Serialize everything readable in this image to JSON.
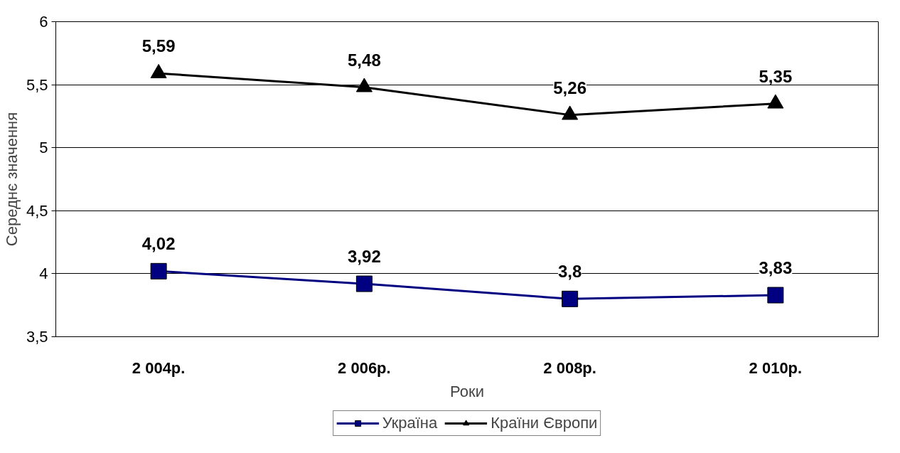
{
  "chart_data": {
    "type": "line",
    "xlabel": "Роки",
    "ylabel": "Середнє значення",
    "categories": [
      "2 004р.",
      "2 006р.",
      "2 008р.",
      "2 010р."
    ],
    "series": [
      {
        "name": "Україна",
        "color": "#000080",
        "marker": "square",
        "values": [
          4.02,
          3.92,
          3.8,
          3.83
        ],
        "value_labels": [
          "4,02",
          "3,92",
          "3,8",
          "3,83"
        ]
      },
      {
        "name": "Країни Європи",
        "color": "#000000",
        "marker": "triangle",
        "values": [
          5.59,
          5.48,
          5.26,
          5.35
        ],
        "value_labels": [
          "5,59",
          "5,48",
          "5,26",
          "5,35"
        ]
      }
    ],
    "ylim": [
      3.5,
      6
    ],
    "yticks": [
      {
        "value": 3.5,
        "label": "3,5"
      },
      4,
      {
        "value": 4.5,
        "label": "4,5"
      },
      5,
      {
        "value": 5.5,
        "label": "5,5"
      },
      6
    ],
    "grid": "y",
    "legend": "bottom"
  }
}
